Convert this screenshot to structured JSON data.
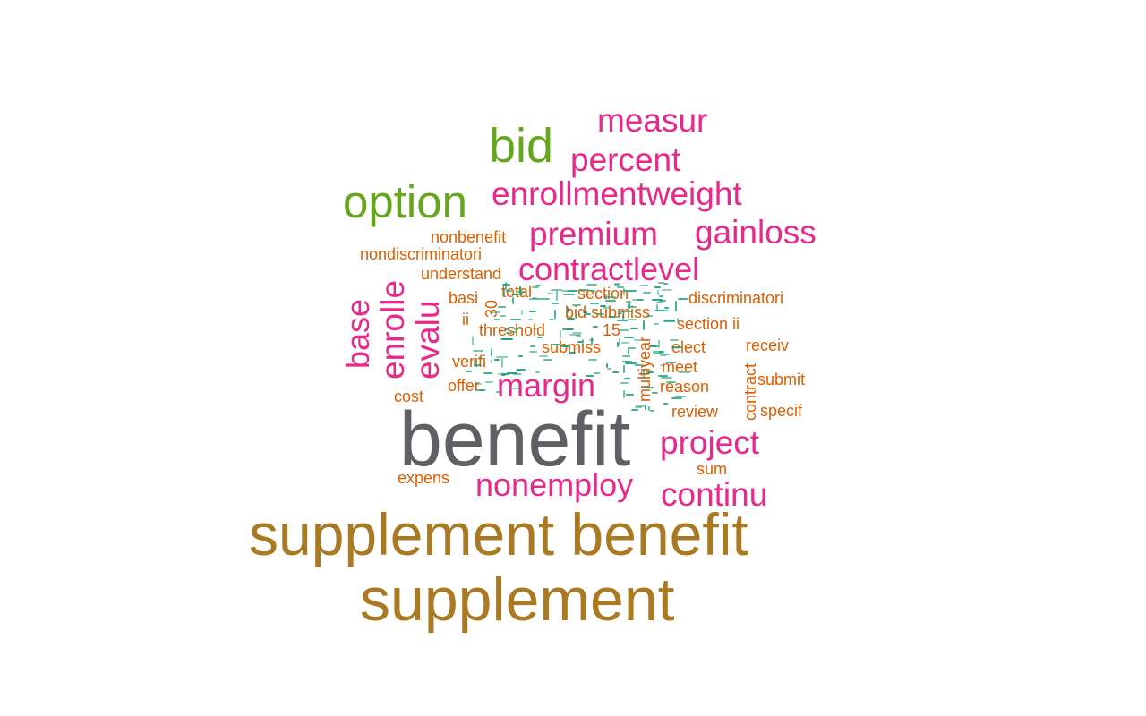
{
  "colors": {
    "background": "#ffffff",
    "gray": "#5f6064",
    "gold": "#a97a22",
    "green": "#66a61e",
    "magenta": "#e7298a",
    "orange": "#d95f02",
    "teal": "#1b9e77"
  },
  "words": [
    {
      "text": "benefit",
      "color": "gray"
    },
    {
      "text": "supplement benefit",
      "color": "gold"
    },
    {
      "text": "supplement",
      "color": "gold"
    },
    {
      "text": "option",
      "color": "green"
    },
    {
      "text": "bid",
      "color": "green"
    },
    {
      "text": "measur",
      "color": "magenta"
    },
    {
      "text": "percent",
      "color": "magenta"
    },
    {
      "text": "enrollmentweight",
      "color": "magenta"
    },
    {
      "text": "premium",
      "color": "magenta"
    },
    {
      "text": "gainloss",
      "color": "magenta"
    },
    {
      "text": "contractlevel",
      "color": "magenta"
    },
    {
      "text": "base",
      "color": "magenta"
    },
    {
      "text": "enrolle",
      "color": "magenta"
    },
    {
      "text": "evalu",
      "color": "magenta"
    },
    {
      "text": "margin",
      "color": "magenta"
    },
    {
      "text": "project",
      "color": "magenta"
    },
    {
      "text": "nonemploy",
      "color": "magenta"
    },
    {
      "text": "continu",
      "color": "magenta"
    },
    {
      "text": "nonbenefit",
      "color": "orange"
    },
    {
      "text": "nondiscriminatori",
      "color": "orange"
    },
    {
      "text": "understand",
      "color": "orange"
    },
    {
      "text": "basi",
      "color": "orange"
    },
    {
      "text": "total",
      "color": "orange"
    },
    {
      "text": "section",
      "color": "orange"
    },
    {
      "text": "discriminatori",
      "color": "orange"
    },
    {
      "text": "30",
      "color": "orange"
    },
    {
      "text": "bid submiss",
      "color": "orange"
    },
    {
      "text": "ii",
      "color": "orange"
    },
    {
      "text": "section ii",
      "color": "orange"
    },
    {
      "text": "threshold",
      "color": "orange"
    },
    {
      "text": "15",
      "color": "orange"
    },
    {
      "text": "submiss",
      "color": "orange"
    },
    {
      "text": "elect",
      "color": "orange"
    },
    {
      "text": "receiv",
      "color": "orange"
    },
    {
      "text": "verifi",
      "color": "orange"
    },
    {
      "text": "meet",
      "color": "orange"
    },
    {
      "text": "multiyear",
      "color": "orange"
    },
    {
      "text": "contract",
      "color": "orange"
    },
    {
      "text": "submit",
      "color": "orange"
    },
    {
      "text": "cost",
      "color": "orange"
    },
    {
      "text": "offer",
      "color": "orange"
    },
    {
      "text": "reason",
      "color": "orange"
    },
    {
      "text": "review",
      "color": "orange"
    },
    {
      "text": "specif",
      "color": "orange"
    },
    {
      "text": "sum",
      "color": "orange"
    },
    {
      "text": "expens",
      "color": "orange"
    }
  ]
}
